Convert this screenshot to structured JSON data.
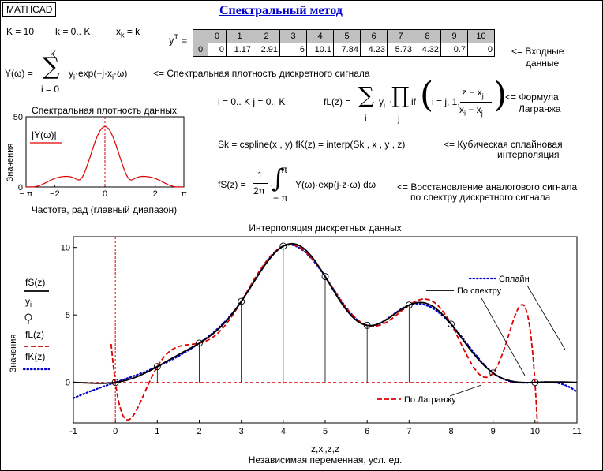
{
  "app": {
    "brand": "MATHCAD",
    "title": "Спектральный метод"
  },
  "definitions": {
    "K_def": "K = 10",
    "k_range": "k = 0.. K",
    "xk_lhs": "x",
    "xk_sub": "k",
    "xk_rhs": "= k",
    "yT_label": "y",
    "yT_sup": "T",
    "yT_eq": "="
  },
  "vector": {
    "headers": [
      "0",
      "1",
      "2",
      "3",
      "4",
      "5",
      "6",
      "7",
      "8",
      "9",
      "10"
    ],
    "row_index": "0",
    "values": [
      "0",
      "1.17",
      "2.91",
      "6",
      "10.1",
      "7.84",
      "4.23",
      "5.73",
      "4.32",
      "0.7",
      "0"
    ],
    "note_line1": "<= Входные",
    "note_line2": "данные"
  },
  "spectrum_formula": {
    "lhs": "Y(ω) =",
    "sum_top": "K",
    "sum_bottom": "i = 0",
    "body": "y",
    "body_sub": "i",
    "body_rest": "·exp(−j·x",
    "body_sub2": "i",
    "body_end": "·ω)",
    "note": "<= Спектральная плотность дискретного сигнала"
  },
  "lagrange": {
    "ranges": "i = 0.. K    j = 0.. K",
    "lhs": "fL(z) =",
    "sum_bottom": "i",
    "prod_bottom": "j",
    "y": "y",
    "y_sub": "i",
    "if_text": "if",
    "cond": "i = j, 1,",
    "num": "z − x",
    "num_sub": "j",
    "den": "x",
    "den_sub": "i",
    "den_rest": " − x",
    "den_sub2": "j",
    "note_line1": "<= Формула",
    "note_line2": "Лагранжа"
  },
  "spline": {
    "formula": "Sk = cspline(x , y)    fK(z) = interp(Sk , x , y , z)",
    "note_line1": "<= Кубическая сплайновая",
    "note_line2": "интерполяция"
  },
  "fourier": {
    "lhs": "fS(z) =",
    "frac_num": "1",
    "frac_den": "2π",
    "int_top": "π",
    "int_bottom": "− π",
    "body": "Y(ω)·exp(j·z·ω) dω",
    "note_line1": "<= Восстановление аналогового сигнала",
    "note_line2": "по спектру дискретного сигнала"
  },
  "colors": {
    "blue_title": "#0000cc",
    "red": "#dd0000",
    "blue": "#0000cc",
    "black": "#000000",
    "grid_gray": "#c0c0c0"
  },
  "small_chart": {
    "type": "line",
    "title": "Спектральная плотность данных",
    "ylabel": "Значения",
    "xlabel": "Частота, рад (главный диапазон)",
    "legend": "|Y(ω)|",
    "xlim": [
      -3.1416,
      3.1416
    ],
    "ylim": [
      0,
      50
    ],
    "yticks": [
      "0",
      "50"
    ],
    "xticks": [
      {
        "v": -3.1416,
        "label": "− π"
      },
      {
        "v": -2,
        "label": "−2"
      },
      {
        "v": 0,
        "label": "0"
      },
      {
        "v": 2,
        "label": "2"
      },
      {
        "v": 3.1416,
        "label": "π"
      }
    ],
    "samples": {
      "start": -3.1416,
      "end": 3.1416,
      "count": 121
    },
    "marker_x": 0
  },
  "chart_data": {
    "type": "line",
    "title": "Интерполяция дискретных данных",
    "xlabel": "z,x",
    "xlabel_sub": "i",
    "xlabel_rest": ",z,z",
    "xlabel2": "Независимая переменная, усл. ед.",
    "ylabel": "Значения",
    "xlim": [
      -1,
      11
    ],
    "ylim": [
      -3,
      10.8
    ],
    "xticks": [
      "-1",
      "0",
      "1",
      "2",
      "3",
      "4",
      "5",
      "6",
      "7",
      "8",
      "9",
      "10",
      "11"
    ],
    "yticks": [
      {
        "v": 0,
        "label": "0"
      },
      {
        "v": 5,
        "label": "5"
      },
      {
        "v": 10,
        "label": "10"
      }
    ],
    "points": {
      "x": [
        0,
        1,
        2,
        3,
        4,
        5,
        6,
        7,
        8,
        9,
        10
      ],
      "y": [
        0,
        1.17,
        2.91,
        6,
        10.1,
        7.84,
        4.23,
        5.73,
        4.32,
        0.7,
        0
      ]
    },
    "legend": [
      {
        "label": "fS(z)",
        "style": "black-solid"
      },
      {
        "label": "y",
        "sub": "i",
        "style": "circle"
      },
      {
        "label": "fL(z)",
        "style": "red-dash"
      },
      {
        "label": "fK(z)",
        "style": "blue-dot"
      }
    ],
    "annotations": {
      "spline": "Сплайн",
      "spectrum": "По спектру",
      "lagrange": "По Лагранжу"
    },
    "series": [
      {
        "name": "fS(z)",
        "color": "#000000",
        "style": "solid"
      },
      {
        "name": "fL(z)",
        "color": "#dd0000",
        "style": "dash"
      },
      {
        "name": "fK(z)",
        "color": "#0000cc",
        "style": "dot"
      }
    ]
  }
}
